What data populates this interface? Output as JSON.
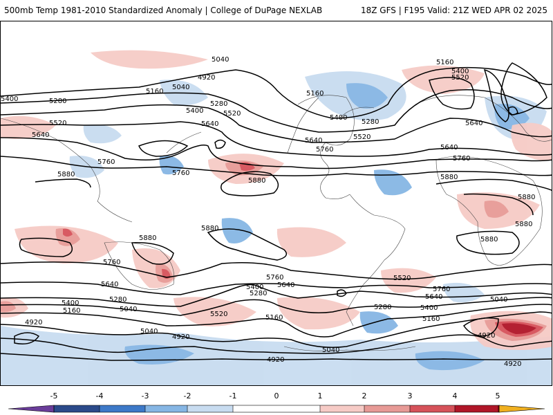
{
  "header": {
    "title_left": "500mb Temp 1981-2010 Standardized Anomaly | College of DuPage NEXLAB",
    "title_right": "18Z GFS | F195 Valid: 21Z WED APR 02 2025"
  },
  "colors": {
    "n5": "#6a3d9a",
    "n4": "#2b4a8a",
    "n3": "#3d79c8",
    "n2": "#86b6e4",
    "n1": "#c8dcf0",
    "zero": "#ffffff",
    "p1": "#f6cbc6",
    "p2": "#e79a96",
    "p3": "#d6525a",
    "p4": "#b01628",
    "p5": "#7a0010",
    "p6": "#f0b020",
    "contour": "#000000"
  },
  "colorbar": {
    "ticks": [
      "-5",
      "-4",
      "-3",
      "-2",
      "-1",
      "0",
      "1",
      "2",
      "3",
      "4",
      "5"
    ]
  },
  "contour_labels": [
    "5040",
    "4920",
    "5160",
    "5040",
    "5400",
    "5280",
    "5520",
    "5640",
    "5760",
    "5880",
    "5280",
    "5400",
    "5160",
    "5040",
    "4920",
    "5040",
    "4920",
    "5280",
    "5400",
    "5520",
    "5640",
    "5760",
    "5880",
    "5160",
    "5280",
    "5400",
    "5520",
    "5640",
    "5760",
    "5880",
    "5160",
    "5400",
    "5520",
    "5640",
    "5760",
    "5880",
    "5880",
    "5880",
    "5760",
    "5640",
    "5520",
    "5400",
    "5280",
    "5160",
    "5040",
    "4920",
    "4920",
    "5040",
    "5160",
    "5280",
    "5400",
    "5520",
    "5640",
    "5760",
    "5400",
    "5280",
    "5160",
    "5040",
    "4920",
    "5040",
    "4920",
    "5040",
    "4920"
  ],
  "map_labels": {
    "left_5400": "5400",
    "left_5280": "5280",
    "left_5520": "5520",
    "left_5640": "5640",
    "left_5760": "5760",
    "left_5880": "5880",
    "top_5040": "5040",
    "top_4920": "4920",
    "top_5160": "5160",
    "top_5040b": "5040",
    "mid_5400": "5400",
    "mid_5280": "5280",
    "mid_5520": "5520",
    "mid_5640": "5640",
    "pac_5760": "5760",
    "pac_5880": "5880",
    "na_5160": "5160",
    "na_5400": "5400",
    "na_5280": "5280",
    "na_5640": "5640",
    "na_5760": "5760",
    "na_5520": "5520",
    "eu_5160": "5160",
    "eu_5400": "5400",
    "eu_5520": "5520",
    "eu_5640": "5640",
    "at_5640": "5640",
    "at_5760": "5760",
    "af_5880a": "5880",
    "af_5880b": "5880",
    "af_5880c": "5880",
    "af_5880d": "5880",
    "sp_5880": "5880",
    "au_5880": "5880",
    "au_5760": "5760",
    "s_5640": "5640",
    "s_5400": "5400",
    "s_5280": "5280",
    "s_5160": "5160",
    "s_5040": "5040",
    "s_4920": "4920",
    "s_5040b": "5040",
    "s_4920b": "4920",
    "sp_5520": "5520",
    "sa_5760": "5760",
    "sa_5640": "5640",
    "sa_5400": "5400",
    "sa_5280": "5280",
    "sp_5160": "5160",
    "sp_5040": "5040",
    "sp_4920": "4920",
    "sat_5520": "5520",
    "sat_5760": "5760",
    "sat_5640": "5640",
    "sat_5400": "5400",
    "sat_5280": "5280",
    "sat_5160": "5160",
    "io_5040": "5040",
    "io_4920": "4920",
    "io_4920b": "4920"
  }
}
